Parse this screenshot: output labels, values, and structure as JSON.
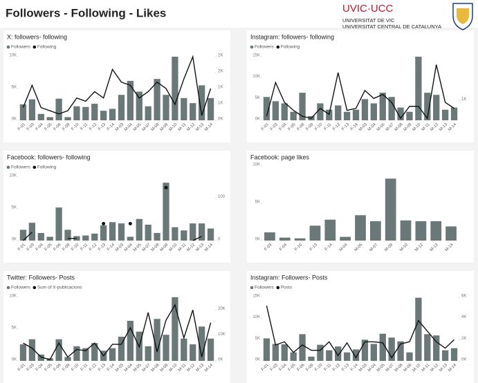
{
  "header": {
    "title": "Followers - Following - Likes",
    "logo": "UVIC·UCC",
    "logo_line1": "UNIVERSITAT DE VIC",
    "logo_line2": "UNIVERSITAT CENTRAL DE CATALUNYA"
  },
  "chart_data": [
    {
      "type": "bar",
      "title": "X: followers- following",
      "categories": [
        "F-01",
        "F-03",
        "F-04",
        "F-05",
        "F-06",
        "F-09",
        "F-10",
        "F-11",
        "F-12",
        "F-13",
        "F-14",
        "M-03",
        "M-04",
        "M-05",
        "M-07",
        "M-08",
        "M-09",
        "M-10",
        "M-11",
        "M-12",
        "M-13",
        "M-14"
      ],
      "series": [
        {
          "name": "Followers",
          "color": "#6b7878",
          "values": [
            2500,
            3300,
            1000,
            500,
            3400,
            500,
            2200,
            2100,
            2600,
            1500,
            1800,
            4000,
            6200,
            4500,
            2200,
            6500,
            4000,
            10000,
            3500,
            2700,
            5500,
            3500
          ]
        },
        {
          "name": "Following",
          "color": "#111111",
          "axis": "y2",
          "values": [
            400,
            1100,
            400,
            300,
            200,
            300,
            700,
            600,
            900,
            700,
            1600,
            1200,
            1100,
            700,
            900,
            1200,
            1000,
            500,
            1300,
            2000,
            150,
            1000
          ]
        }
      ],
      "ylim": [
        0,
        10000
      ],
      "yticks": [
        {
          "value": 0,
          "label": "0K"
        },
        {
          "value": 5000,
          "label": "5K"
        },
        {
          "value": 10000,
          "label": "10K"
        }
      ],
      "y2lim": [
        0,
        2000
      ],
      "y2ticks": [
        {
          "value": 0,
          "label": "0K"
        },
        {
          "value": 500,
          "label": "1K"
        },
        {
          "value": 1000,
          "label": "1K"
        },
        {
          "value": 1500,
          "label": "2K"
        },
        {
          "value": 2000,
          "label": "2K"
        }
      ]
    },
    {
      "type": "bar",
      "title": "Instagram: followers- following",
      "categories": [
        "F-01",
        "F-03",
        "F-04",
        "F-05",
        "F-06",
        "F-09",
        "F-10",
        "F-11",
        "F-12",
        "F-13",
        "F-14",
        "M-03",
        "M-04",
        "M-05",
        "M-07",
        "M-08",
        "M-09",
        "M-10",
        "M-11",
        "M-12",
        "M-13",
        "M-14"
      ],
      "series": [
        {
          "name": "Followers",
          "color": "#6b7878",
          "values": [
            5500,
            4500,
            4000,
            2000,
            6500,
            1000,
            4000,
            2500,
            3500,
            2000,
            2500,
            5000,
            4000,
            6500,
            5500,
            3000,
            2000,
            15000,
            6500,
            6000,
            2500,
            3000
          ]
        },
        {
          "name": "Following",
          "color": "#111111",
          "axis": "y2",
          "values": [
            200,
            1900,
            900,
            500,
            200,
            100,
            600,
            300,
            2400,
            500,
            600,
            1500,
            1100,
            1300,
            900,
            100,
            700,
            700,
            100,
            2800,
            900,
            600
          ]
        }
      ],
      "ylim": [
        0,
        15000
      ],
      "yticks": [
        {
          "value": 0,
          "label": "0K"
        },
        {
          "value": 5000,
          "label": "5K"
        },
        {
          "value": 10000,
          "label": "10K"
        },
        {
          "value": 15000,
          "label": "15K"
        }
      ],
      "y2lim": [
        0,
        3200
      ],
      "y2ticks": [
        {
          "value": 1000,
          "label": "1K"
        }
      ]
    },
    {
      "type": "bar",
      "title": "Facebook: followers- following",
      "categories": [
        "F-01",
        "F-03",
        "F-04",
        "F-05",
        "F-06",
        "F-09",
        "F-10",
        "F-11",
        "F-12",
        "F-13",
        "F-14",
        "M-03",
        "M-04",
        "M-05",
        "M-07",
        "M-08",
        "M-09",
        "M-10",
        "M-11",
        "M-12",
        "M-13",
        "M-14"
      ],
      "series": [
        {
          "name": "Followers",
          "color": "#6b7878",
          "values": [
            1700,
            2800,
            1200,
            600,
            5200,
            1700,
            700,
            800,
            1100,
            2400,
            2900,
            2700,
            600,
            3400,
            2500,
            1200,
            9100,
            2100,
            1600,
            2700,
            2700,
            1900
          ]
        },
        {
          "name": "Following",
          "color": "#111111",
          "axis": "y2",
          "values": [
            0,
            20,
            null,
            null,
            null,
            5,
            5,
            null,
            null,
            40,
            null,
            null,
            40,
            null,
            null,
            null,
            125,
            null,
            null,
            0,
            10,
            null
          ]
        }
      ],
      "ylim": [
        0,
        10000
      ],
      "yticks": [
        {
          "value": 0,
          "label": "0K"
        },
        {
          "value": 5000,
          "label": "5K"
        },
        {
          "value": 10000,
          "label": "10K"
        }
      ],
      "y2lim": [
        0,
        150
      ],
      "y2ticks": [
        0,
        100
      ]
    },
    {
      "type": "bar",
      "title": "Facebook: page likes",
      "categories": [
        "F-03",
        "F-04",
        "F-10",
        "F-13",
        "F-14",
        "M-04",
        "M-05",
        "M-07",
        "M-09",
        "M-10",
        "M-12",
        "M-13",
        "M-14"
      ],
      "series": [
        {
          "color": "#6b7878",
          "values": [
            1100,
            400,
            300,
            2000,
            2800,
            500,
            3400,
            2600,
            8300,
            2700,
            2600,
            2600,
            1900
          ]
        }
      ],
      "ylim": [
        0,
        10000
      ],
      "yticks": [
        {
          "value": 0,
          "label": "0K"
        },
        {
          "value": 5000,
          "label": "5K"
        },
        {
          "value": 10000,
          "label": "10K"
        }
      ]
    },
    {
      "type": "bar",
      "title": "Twitter: Followers- Posts",
      "categories": [
        "F-01",
        "F-03",
        "F-04",
        "F-05",
        "F-06",
        "F-09",
        "F-10",
        "F-11",
        "F-12",
        "F-13",
        "F-14",
        "M-03",
        "M-04",
        "M-05",
        "M-07",
        "M-08",
        "M-09",
        "M-10",
        "M-11",
        "M-12",
        "M-13",
        "M-14"
      ],
      "series": [
        {
          "name": "Followers",
          "color": "#6b7878",
          "values": [
            2600,
            3400,
            1000,
            400,
            3400,
            600,
            2300,
            2000,
            2800,
            1600,
            2000,
            3800,
            6300,
            4600,
            2300,
            6600,
            4100,
            10000,
            3500,
            2600,
            5400,
            3500
          ]
        },
        {
          "name": "Sum of X-publicacions",
          "color": "#111111",
          "axis": "y2",
          "values": [
            7000,
            5000,
            1500,
            500,
            7000,
            1500,
            4500,
            4000,
            7000,
            2000,
            6500,
            6500,
            13000,
            5500,
            19000,
            3500,
            16000,
            22000,
            9000,
            20000,
            1500,
            15000
          ]
        }
      ],
      "ylim": [
        0,
        10000
      ],
      "yticks": [
        {
          "value": 0,
          "label": "0K"
        },
        {
          "value": 5000,
          "label": "5K"
        },
        {
          "value": 10000,
          "label": "10K"
        }
      ],
      "y2lim": [
        0,
        25000
      ],
      "y2ticks": [
        {
          "value": 0,
          "label": "0K"
        },
        {
          "value": 10000,
          "label": "10K"
        },
        {
          "value": 20000,
          "label": "20K"
        }
      ]
    },
    {
      "type": "bar",
      "title": "Instagram: Followers- Posts",
      "categories": [
        "F-01",
        "F-03",
        "F-04",
        "F-05",
        "F-06",
        "F-09",
        "F-10",
        "F-11",
        "F-12",
        "F-13",
        "F-14",
        "M-03",
        "M-04",
        "M-05",
        "M-07",
        "M-08",
        "M-09",
        "M-10",
        "M-11",
        "M-12",
        "M-13",
        "M-14"
      ],
      "series": [
        {
          "name": "Followers",
          "color": "#6b7878",
          "values": [
            5300,
            4000,
            3900,
            2000,
            6300,
            1000,
            3800,
            2500,
            3400,
            2000,
            2700,
            5000,
            4000,
            6400,
            5500,
            4600,
            2000,
            14900,
            6300,
            6000,
            2500,
            3000
          ]
        },
        {
          "name": "Posts",
          "color": "#111111",
          "axis": "y2",
          "values": [
            5200,
            1500,
            1800,
            800,
            1500,
            1000,
            1000,
            1800,
            500,
            1700,
            300,
            1800,
            1800,
            1700,
            300,
            1600,
            1800,
            3800,
            2800,
            1800,
            1200,
            2000
          ]
        }
      ],
      "ylim": [
        0,
        15000
      ],
      "yticks": [
        {
          "value": 0,
          "label": "0K"
        },
        {
          "value": 5000,
          "label": "5K"
        },
        {
          "value": 10000,
          "label": "10K"
        },
        {
          "value": 15000,
          "label": "15K"
        }
      ],
      "y2lim": [
        0,
        6000
      ],
      "y2ticks": [
        {
          "value": 0,
          "label": "0K"
        },
        {
          "value": 2000,
          "label": "2K"
        },
        {
          "value": 4000,
          "label": "4K"
        },
        {
          "value": 6000,
          "label": "6K"
        }
      ]
    }
  ]
}
